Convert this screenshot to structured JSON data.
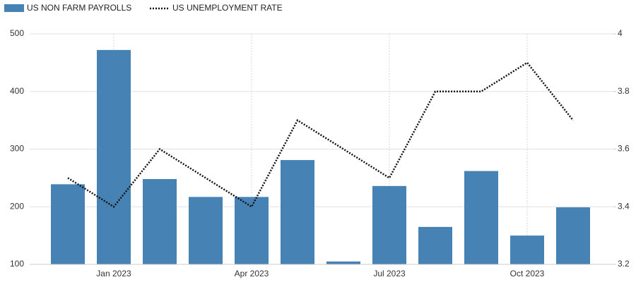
{
  "chart_data": {
    "type": "bar",
    "categories": [
      null,
      "Jan 2023",
      null,
      null,
      "Apr 2023",
      null,
      null,
      "Jul 2023",
      null,
      null,
      "Oct 2023",
      null
    ],
    "series": [
      {
        "name": "US NON FARM PAYROLLS",
        "type": "bar",
        "color": "#4682b4",
        "values": [
          239,
          472,
          248,
          217,
          217,
          281,
          105,
          236,
          165,
          262,
          150,
          199
        ]
      },
      {
        "name": "US UNEMPLOYMENT RATE",
        "type": "line",
        "color": "#111111",
        "axis": "y2",
        "values": [
          3.5,
          3.4,
          3.6,
          3.5,
          3.4,
          3.7,
          3.6,
          3.5,
          3.8,
          3.8,
          3.9,
          3.7
        ]
      }
    ],
    "ylim": [
      100,
      500
    ],
    "yticks": [
      100,
      200,
      300,
      400,
      500
    ],
    "y2lim": [
      3.2,
      4
    ],
    "y2ticks": [
      3.2,
      3.4,
      3.6,
      3.8,
      4
    ],
    "grid": true
  }
}
